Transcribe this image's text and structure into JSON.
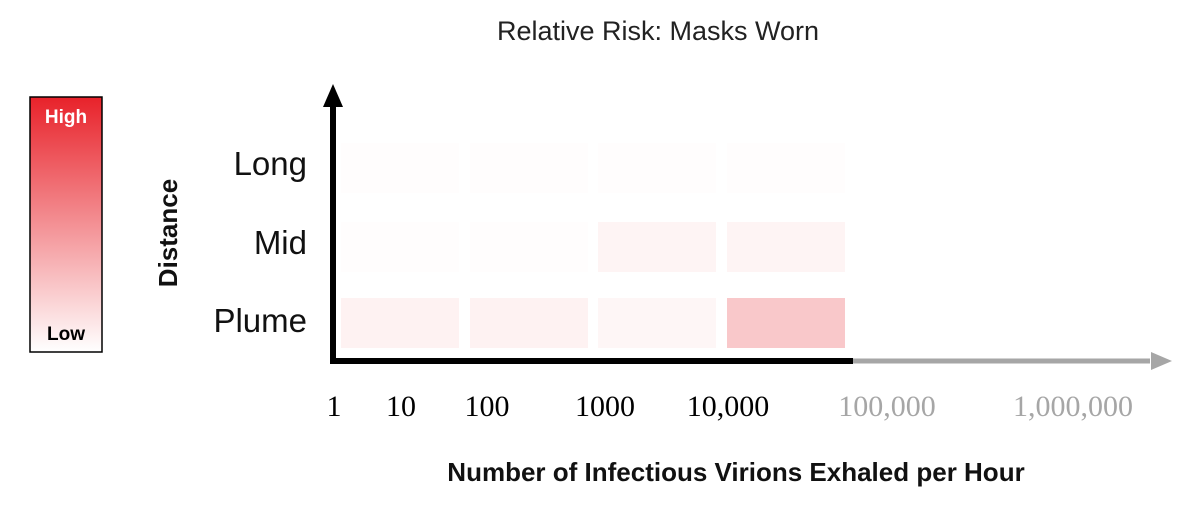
{
  "chart_data": {
    "type": "heatmap",
    "title": "Relative Risk: Masks Worn",
    "xlabel": "Number of Infectious Virions Exhaled per Hour",
    "ylabel": "Distance",
    "x_ticks": [
      {
        "label": "1",
        "active": true
      },
      {
        "label": "10",
        "active": true
      },
      {
        "label": "100",
        "active": true
      },
      {
        "label": "1000",
        "active": true
      },
      {
        "label": "10,000",
        "active": true
      },
      {
        "label": "100,000",
        "active": false
      },
      {
        "label": "1,000,000",
        "active": false
      }
    ],
    "x_bins": [
      "1–10",
      "10–100",
      "100–1000",
      "1000–10,000"
    ],
    "rows": [
      "Long",
      "Mid",
      "Plume"
    ],
    "values": [
      [
        0.01,
        0.01,
        0.01,
        0.01
      ],
      [
        0.01,
        0.01,
        0.05,
        0.05
      ],
      [
        0.06,
        0.06,
        0.04,
        0.25
      ]
    ],
    "scale": {
      "min": 0,
      "max": 1
    },
    "legend": {
      "high_label": "High",
      "low_label": "Low",
      "high_color": "#e8222a",
      "low_color": "#ffffff"
    },
    "colors": {
      "axis_active": "#000000",
      "axis_inactive": "#a6a6a6",
      "tick_inactive": "#a6a6a6"
    }
  }
}
